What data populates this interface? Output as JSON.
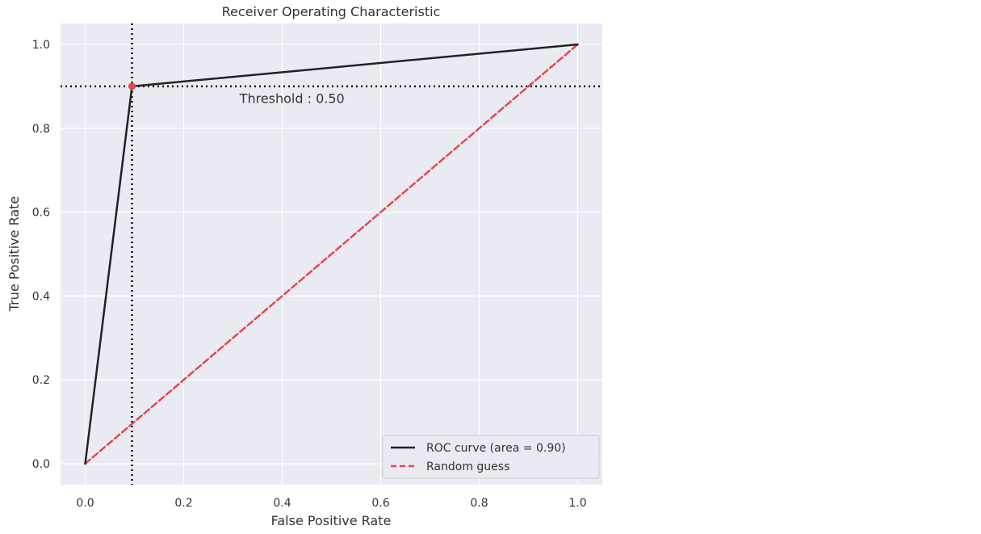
{
  "chart_data": {
    "type": "line",
    "title": "Receiver Operating Characteristic",
    "xlabel": "False Positive Rate",
    "ylabel": "True Positive Rate",
    "xlim": [
      -0.05,
      1.05
    ],
    "ylim": [
      -0.05,
      1.05
    ],
    "xticks": [
      0.0,
      0.2,
      0.4,
      0.6,
      0.8,
      1.0
    ],
    "yticks": [
      0.0,
      0.2,
      0.4,
      0.6,
      0.8,
      1.0
    ],
    "xtick_labels": [
      "0.0",
      "0.2",
      "0.4",
      "0.6",
      "0.8",
      "1.0"
    ],
    "ytick_labels": [
      "0.0",
      "0.2",
      "0.4",
      "0.6",
      "0.8",
      "1.0"
    ],
    "grid": true,
    "legend_position": "lower-right",
    "series": [
      {
        "name": "ROC curve (area = 0.90)",
        "x": [
          0.0,
          0.095,
          1.0
        ],
        "y": [
          0.0,
          0.9,
          1.0
        ],
        "color": "#222222",
        "style": "solid"
      },
      {
        "name": "Random guess",
        "x": [
          0.0,
          1.0
        ],
        "y": [
          0.0,
          1.0
        ],
        "color": "#e34a4a",
        "style": "dashed"
      }
    ],
    "threshold_point": {
      "x": 0.095,
      "y": 0.9,
      "color": "#e34a4a"
    },
    "annotation": {
      "text": "Threshold : 0.50",
      "x": 0.42,
      "y": 0.86
    },
    "reference_lines": {
      "vertical_x": 0.095,
      "horizontal_y": 0.9
    },
    "colors": {
      "plot_background": "#eaeaf2",
      "grid": "#ffffff",
      "text": "#333333"
    }
  }
}
